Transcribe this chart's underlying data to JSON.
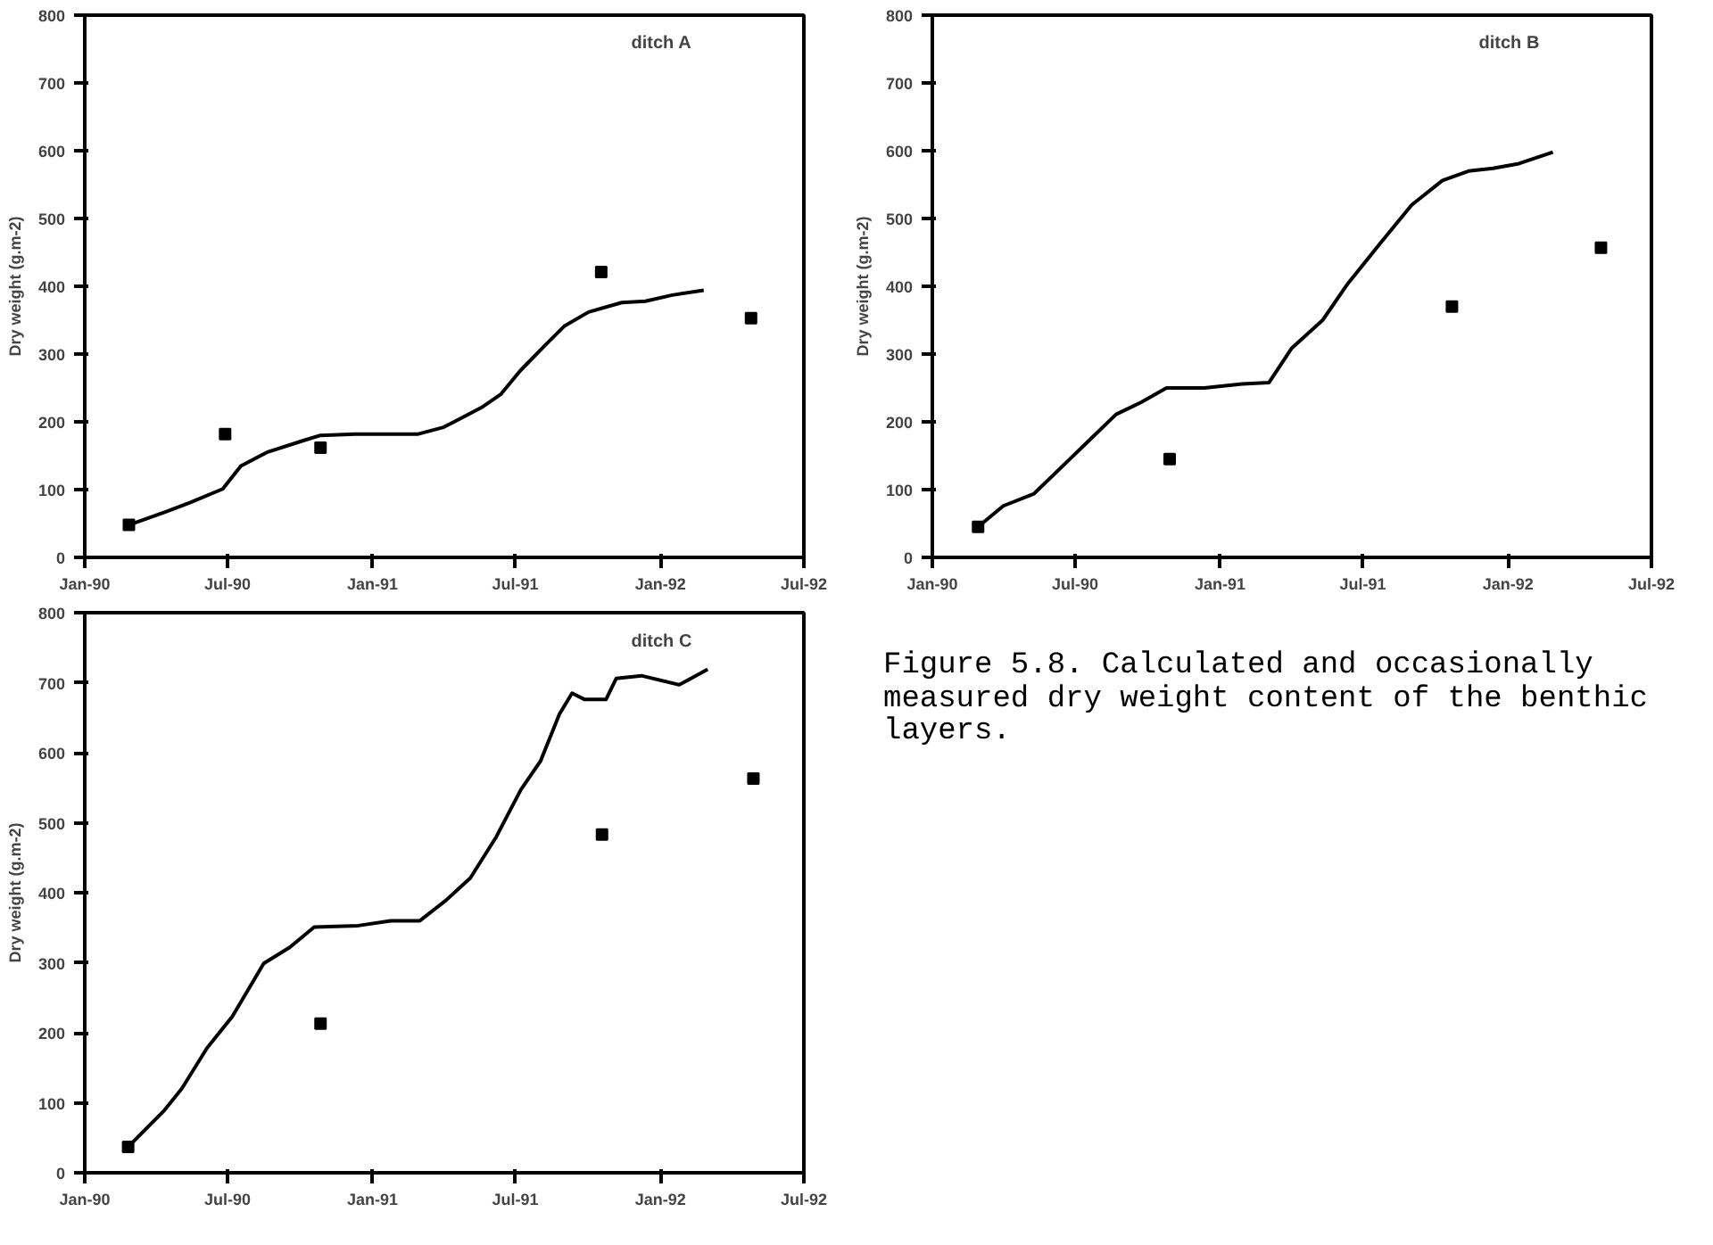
{
  "chart_data": [
    {
      "type": "line",
      "title": "ditch A",
      "ylabel": "Dry weight (g.m-2)",
      "xlim": [
        "1990-01-01",
        "1992-07-01"
      ],
      "ylim": [
        0,
        800
      ],
      "grid": false,
      "xticks": [
        {
          "value": "1990-01-01",
          "label": "Jan-90"
        },
        {
          "value": "1990-07-01",
          "label": "Jul-90"
        },
        {
          "value": "1991-01-01",
          "label": "Jan-91"
        },
        {
          "value": "1991-07-01",
          "label": "Jul-91"
        },
        {
          "value": "1992-01-01",
          "label": "Jan-92"
        },
        {
          "value": "1992-07-01",
          "label": "Jul-92"
        }
      ],
      "yticks": [
        0,
        100,
        200,
        300,
        400,
        500,
        600,
        700,
        800
      ],
      "series": [
        {
          "type": "line",
          "color": "#000000",
          "line_style": "solid",
          "marker": "none",
          "x": [
            "1990-02-26",
            "1990-04-13",
            "1990-05-15",
            "1990-06-25",
            "1990-07-18",
            "1990-08-20",
            "1990-10-07",
            "1990-10-27",
            "1990-12-10",
            "1991-02-28",
            "1991-04-01",
            "1991-05-19",
            "1991-06-13",
            "1991-07-07",
            "1991-08-07",
            "1991-09-01",
            "1991-10-02",
            "1991-11-13",
            "1991-12-13",
            "1992-01-16",
            "1992-02-25"
          ],
          "values": [
            48,
            67,
            81,
            101,
            135,
            155,
            173,
            180,
            182,
            182,
            192,
            221,
            241,
            275,
            312,
            341,
            362,
            376,
            378,
            387,
            394
          ]
        },
        {
          "type": "scatter",
          "color": "#000000",
          "marker": "square",
          "x": [
            "1990-02-26",
            "1990-06-28",
            "1990-10-27",
            "1991-10-18",
            "1992-04-25"
          ],
          "values": [
            48,
            182,
            162,
            421,
            353
          ]
        }
      ]
    },
    {
      "type": "line",
      "title": "ditch B",
      "ylabel": "Dry weight (g.m-2)",
      "xlim": [
        "1990-01-01",
        "1992-07-01"
      ],
      "ylim": [
        0,
        800
      ],
      "grid": false,
      "xticks": [
        {
          "value": "1990-01-01",
          "label": "Jan-90"
        },
        {
          "value": "1990-07-01",
          "label": "Jul-90"
        },
        {
          "value": "1991-01-01",
          "label": "Jan-91"
        },
        {
          "value": "1991-07-01",
          "label": "Jul-91"
        },
        {
          "value": "1992-01-01",
          "label": "Jan-92"
        },
        {
          "value": "1992-07-01",
          "label": "Jul-92"
        }
      ],
      "yticks": [
        0,
        100,
        200,
        300,
        400,
        500,
        600,
        700,
        800
      ],
      "series": [
        {
          "type": "line",
          "color": "#000000",
          "line_style": "solid",
          "marker": "none",
          "x": [
            "1990-02-28",
            "1990-04-01",
            "1990-05-10",
            "1990-06-19",
            "1990-07-21",
            "1990-08-22",
            "1990-09-23",
            "1990-10-25",
            "1990-12-12",
            "1991-01-29",
            "1991-03-04",
            "1991-04-02",
            "1991-05-11",
            "1991-06-12",
            "1991-07-22",
            "1991-09-01",
            "1991-10-10",
            "1991-11-12",
            "1991-12-13",
            "1992-01-15",
            "1992-02-27"
          ],
          "values": [
            45,
            76,
            94,
            139,
            175,
            211,
            229,
            250,
            250,
            256,
            258,
            309,
            350,
            404,
            462,
            520,
            556,
            570,
            574,
            581,
            598
          ]
        },
        {
          "type": "scatter",
          "color": "#000000",
          "marker": "square",
          "x": [
            "1990-02-28",
            "1990-10-29",
            "1991-10-22",
            "1992-04-28"
          ],
          "values": [
            45,
            145,
            370,
            457
          ]
        }
      ]
    },
    {
      "type": "line",
      "title": "ditch C",
      "ylabel": "Dry weight (g.m-2)",
      "xlim": [
        "1990-01-01",
        "1992-07-01"
      ],
      "ylim": [
        0,
        800
      ],
      "grid": false,
      "xticks": [
        {
          "value": "1990-01-01",
          "label": "Jan-90"
        },
        {
          "value": "1990-07-01",
          "label": "Jul-90"
        },
        {
          "value": "1991-01-01",
          "label": "Jan-91"
        },
        {
          "value": "1991-07-01",
          "label": "Jul-91"
        },
        {
          "value": "1992-01-01",
          "label": "Jan-92"
        },
        {
          "value": "1992-07-01",
          "label": "Jul-92"
        }
      ],
      "yticks": [
        0,
        100,
        200,
        300,
        400,
        500,
        600,
        700,
        800
      ],
      "annotations": [
        "Figure 5.8. Calculated and occasionally measured dry weight content of the benthic layers."
      ],
      "series": [
        {
          "type": "line",
          "color": "#000000",
          "line_style": "solid",
          "marker": "none",
          "x": [
            "1990-02-25",
            "1990-04-11",
            "1990-05-04",
            "1990-06-05",
            "1990-07-07",
            "1990-08-16",
            "1990-09-18",
            "1990-10-19",
            "1990-12-14",
            "1991-01-24",
            "1991-03-02",
            "1991-04-04",
            "1991-05-05",
            "1991-06-07",
            "1991-07-08",
            "1991-08-02",
            "1991-08-26",
            "1991-09-11",
            "1991-09-27",
            "1991-10-24",
            "1991-11-06",
            "1991-12-08",
            "1992-01-25",
            "1992-03-01"
          ],
          "values": [
            37,
            88,
            120,
            178,
            223,
            299,
            322,
            351,
            353,
            360,
            360,
            389,
            421,
            480,
            547,
            588,
            655,
            685,
            676,
            676,
            706,
            710,
            697,
            719
          ]
        },
        {
          "type": "scatter",
          "color": "#000000",
          "marker": "square",
          "x": [
            "1990-02-25",
            "1990-10-27",
            "1991-10-19",
            "1992-04-28"
          ],
          "values": [
            37,
            213,
            483,
            563
          ]
        }
      ]
    }
  ]
}
